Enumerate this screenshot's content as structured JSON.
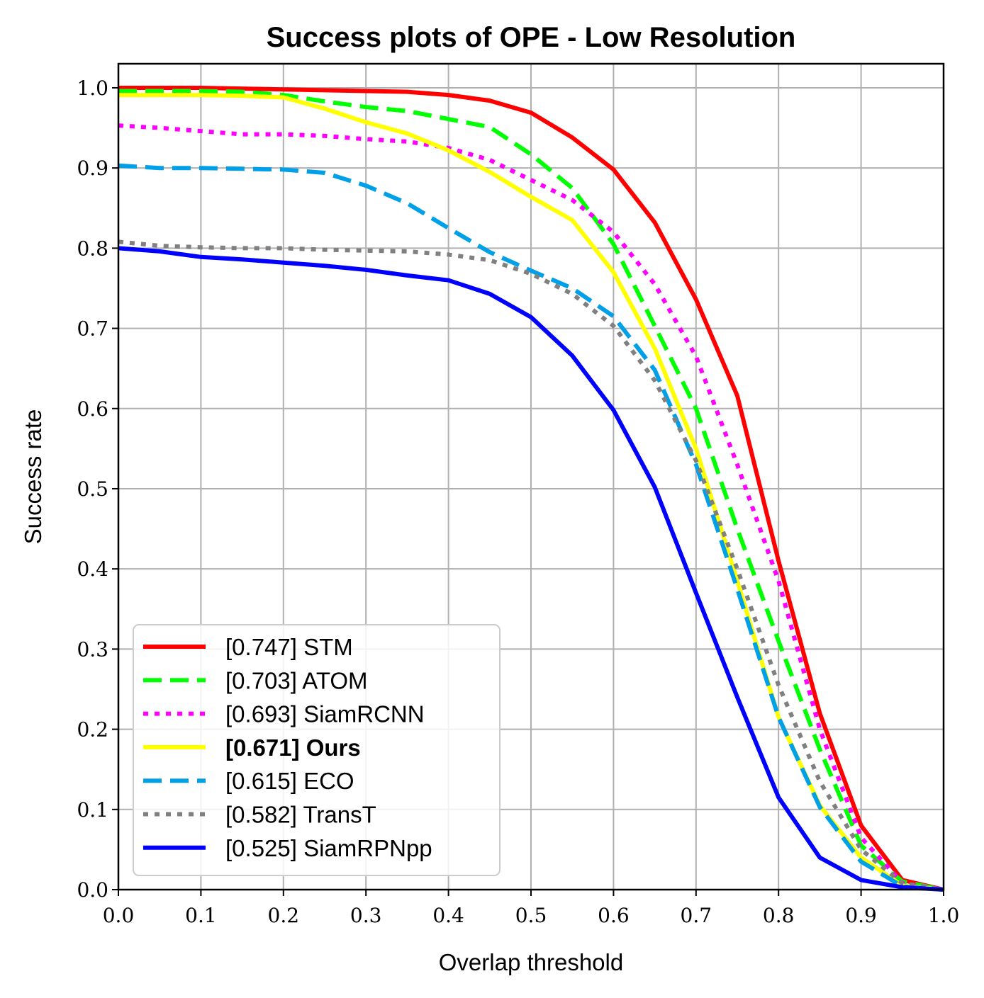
{
  "chart_data": {
    "type": "line",
    "title": "Success plots of OPE - Low Resolution",
    "xlabel": "Overlap threshold",
    "ylabel": "Success rate",
    "xlim": [
      0,
      1
    ],
    "ylim": [
      0,
      1.03
    ],
    "grid": true,
    "legend_position": "lower-left",
    "xticks": [
      "0.0",
      "0.1",
      "0.2",
      "0.3",
      "0.4",
      "0.5",
      "0.6",
      "0.7",
      "0.8",
      "0.9",
      "1.0"
    ],
    "yticks": [
      "0.0",
      "0.1",
      "0.2",
      "0.3",
      "0.4",
      "0.5",
      "0.6",
      "0.7",
      "0.8",
      "0.9",
      "1.0"
    ],
    "x": [
      0,
      0.05,
      0.1,
      0.15,
      0.2,
      0.25,
      0.3,
      0.35,
      0.4,
      0.45,
      0.5,
      0.55,
      0.6,
      0.65,
      0.7,
      0.75,
      0.8,
      0.85,
      0.9,
      0.95,
      1.0
    ],
    "series": [
      {
        "name": "[0.747] STM",
        "color": "#ff0000",
        "style": "solid",
        "bold": false,
        "values": [
          1.0,
          1.0,
          1.0,
          0.999,
          0.998,
          0.997,
          0.996,
          0.995,
          0.991,
          0.984,
          0.969,
          0.938,
          0.898,
          0.832,
          0.736,
          0.616,
          0.41,
          0.22,
          0.08,
          0.012,
          0.0
        ]
      },
      {
        "name": "[0.703] ATOM",
        "color": "#00ff00",
        "style": "dashed",
        "bold": false,
        "values": [
          0.996,
          0.996,
          0.996,
          0.995,
          0.991,
          0.983,
          0.976,
          0.971,
          0.961,
          0.951,
          0.917,
          0.875,
          0.805,
          0.703,
          0.6,
          0.45,
          0.31,
          0.175,
          0.055,
          0.01,
          0.0
        ]
      },
      {
        "name": "[0.693] SiamRCNN",
        "color": "#ff00ff",
        "style": "dotted",
        "bold": false,
        "values": [
          0.953,
          0.95,
          0.946,
          0.942,
          0.942,
          0.94,
          0.936,
          0.933,
          0.925,
          0.91,
          0.885,
          0.86,
          0.82,
          0.755,
          0.665,
          0.53,
          0.385,
          0.2,
          0.065,
          0.008,
          0.0
        ]
      },
      {
        "name": "[0.671] Ours",
        "color": "#ffff00",
        "style": "solid",
        "bold": true,
        "values": [
          0.991,
          0.991,
          0.991,
          0.99,
          0.988,
          0.974,
          0.957,
          0.943,
          0.922,
          0.895,
          0.864,
          0.835,
          0.77,
          0.675,
          0.55,
          0.385,
          0.215,
          0.105,
          0.04,
          0.005,
          0.0
        ]
      },
      {
        "name": "[0.615] ECO",
        "color": "#00a0e9",
        "style": "dashed",
        "bold": false,
        "values": [
          0.903,
          0.9,
          0.9,
          0.899,
          0.898,
          0.894,
          0.878,
          0.856,
          0.825,
          0.795,
          0.772,
          0.75,
          0.715,
          0.648,
          0.53,
          0.375,
          0.215,
          0.103,
          0.035,
          0.004,
          0.0
        ]
      },
      {
        "name": "[0.582] TransT",
        "color": "#808080",
        "style": "dotted",
        "bold": false,
        "values": [
          0.808,
          0.803,
          0.801,
          0.8,
          0.8,
          0.798,
          0.797,
          0.796,
          0.792,
          0.785,
          0.768,
          0.743,
          0.703,
          0.635,
          0.535,
          0.4,
          0.255,
          0.135,
          0.05,
          0.008,
          0.0
        ]
      },
      {
        "name": "[0.525] SiamRPNpp",
        "color": "#0000ff",
        "style": "solid",
        "bold": false,
        "values": [
          0.8,
          0.796,
          0.789,
          0.786,
          0.782,
          0.778,
          0.773,
          0.766,
          0.76,
          0.743,
          0.714,
          0.666,
          0.598,
          0.502,
          0.37,
          0.24,
          0.115,
          0.04,
          0.012,
          0.003,
          0.0
        ]
      }
    ]
  }
}
